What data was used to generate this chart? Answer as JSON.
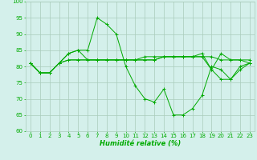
{
  "title": "",
  "xlabel": "Humidité relative (%)",
  "ylabel": "",
  "background_color": "#d4f0eb",
  "grid_color": "#aaccbb",
  "line_color": "#00aa00",
  "xlim": [
    -0.5,
    23.5
  ],
  "ylim": [
    60,
    100
  ],
  "yticks": [
    60,
    65,
    70,
    75,
    80,
    85,
    90,
    95,
    100
  ],
  "xticks": [
    0,
    1,
    2,
    3,
    4,
    5,
    6,
    7,
    8,
    9,
    10,
    11,
    12,
    13,
    14,
    15,
    16,
    17,
    18,
    19,
    20,
    21,
    22,
    23
  ],
  "series": [
    [
      81,
      78,
      78,
      81,
      84,
      85,
      85,
      95,
      93,
      90,
      80,
      74,
      70,
      69,
      73,
      65,
      65,
      67,
      71,
      80,
      79,
      76,
      80,
      81
    ],
    [
      81,
      78,
      78,
      81,
      84,
      85,
      82,
      82,
      82,
      82,
      82,
      82,
      82,
      82,
      83,
      83,
      83,
      83,
      83,
      79,
      84,
      82,
      82,
      81
    ],
    [
      81,
      78,
      78,
      81,
      82,
      82,
      82,
      82,
      82,
      82,
      82,
      82,
      82,
      82,
      83,
      83,
      83,
      83,
      83,
      83,
      82,
      82,
      82,
      82
    ],
    [
      81,
      78,
      78,
      81,
      82,
      82,
      82,
      82,
      82,
      82,
      82,
      82,
      83,
      83,
      83,
      83,
      83,
      83,
      84,
      79,
      76,
      76,
      79,
      81
    ]
  ]
}
